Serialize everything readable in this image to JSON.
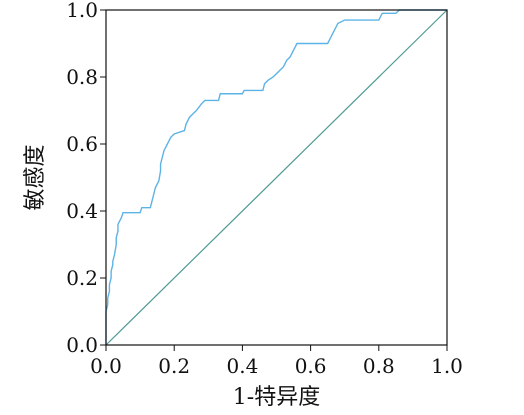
{
  "chart_data": {
    "type": "line",
    "title": "",
    "xlabel": "1-特异度",
    "ylabel": "敏感度",
    "xlim": [
      0.0,
      1.0
    ],
    "ylim": [
      0.0,
      1.0
    ],
    "x_ticks": [
      "0.0",
      "0.2",
      "0.4",
      "0.6",
      "0.8",
      "1.0"
    ],
    "y_ticks": [
      "0.0",
      "0.2",
      "0.4",
      "0.6",
      "0.8",
      "1.0"
    ],
    "grid": false,
    "legend": "none",
    "colors": {
      "roc_curve": "#5db3e6",
      "reference_line": "#4f9a94",
      "frame": "#111111"
    },
    "series": [
      {
        "values": [
          [
            0.0,
            0.0
          ],
          [
            0.0,
            0.1
          ],
          [
            0.005,
            0.12
          ],
          [
            0.005,
            0.14
          ],
          [
            0.01,
            0.16
          ],
          [
            0.01,
            0.18
          ],
          [
            0.015,
            0.2
          ],
          [
            0.015,
            0.22
          ],
          [
            0.02,
            0.24
          ],
          [
            0.02,
            0.25
          ],
          [
            0.025,
            0.27
          ],
          [
            0.03,
            0.3
          ],
          [
            0.03,
            0.32
          ],
          [
            0.035,
            0.34
          ],
          [
            0.035,
            0.36
          ],
          [
            0.04,
            0.37
          ],
          [
            0.045,
            0.38
          ],
          [
            0.05,
            0.395
          ],
          [
            0.1,
            0.395
          ],
          [
            0.105,
            0.41
          ],
          [
            0.13,
            0.41
          ],
          [
            0.135,
            0.43
          ],
          [
            0.14,
            0.45
          ],
          [
            0.145,
            0.47
          ],
          [
            0.15,
            0.48
          ],
          [
            0.155,
            0.49
          ],
          [
            0.16,
            0.52
          ],
          [
            0.16,
            0.54
          ],
          [
            0.165,
            0.56
          ],
          [
            0.17,
            0.58
          ],
          [
            0.175,
            0.59
          ],
          [
            0.18,
            0.6
          ],
          [
            0.19,
            0.62
          ],
          [
            0.2,
            0.63
          ],
          [
            0.23,
            0.64
          ],
          [
            0.235,
            0.66
          ],
          [
            0.245,
            0.68
          ],
          [
            0.255,
            0.69
          ],
          [
            0.265,
            0.7
          ],
          [
            0.28,
            0.72
          ],
          [
            0.29,
            0.73
          ],
          [
            0.33,
            0.73
          ],
          [
            0.335,
            0.75
          ],
          [
            0.4,
            0.75
          ],
          [
            0.405,
            0.76
          ],
          [
            0.46,
            0.76
          ],
          [
            0.465,
            0.78
          ],
          [
            0.475,
            0.79
          ],
          [
            0.49,
            0.8
          ],
          [
            0.5,
            0.81
          ],
          [
            0.51,
            0.82
          ],
          [
            0.52,
            0.83
          ],
          [
            0.53,
            0.85
          ],
          [
            0.54,
            0.86
          ],
          [
            0.55,
            0.88
          ],
          [
            0.56,
            0.9
          ],
          [
            0.65,
            0.9
          ],
          [
            0.66,
            0.92
          ],
          [
            0.67,
            0.94
          ],
          [
            0.68,
            0.96
          ],
          [
            0.7,
            0.97
          ],
          [
            0.8,
            0.97
          ],
          [
            0.81,
            0.99
          ],
          [
            0.85,
            0.99
          ],
          [
            0.86,
            1.0
          ],
          [
            1.0,
            1.0
          ]
        ]
      },
      {
        "values": [
          [
            0.0,
            0.0
          ],
          [
            1.0,
            1.0
          ]
        ]
      }
    ]
  }
}
